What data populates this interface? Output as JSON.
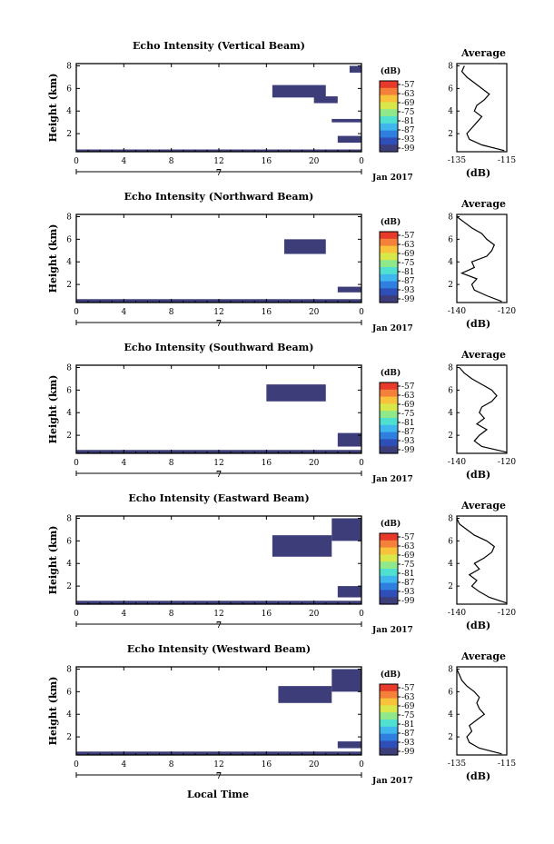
{
  "figure": {
    "bottom_xlabel": "Local Time",
    "date_label": "Jan 2017",
    "day_label": "7",
    "colorbar_unit": "(dB)",
    "avg_title": "Average",
    "avg_xlabel": "(dB)",
    "ylabel": "Height (km)"
  },
  "colors": {
    "echo": "#3d3d7a",
    "colorbar_stops": [
      "#3d3d7a",
      "#2f4fb8",
      "#2f7fe0",
      "#3fb6ee",
      "#4fe0d0",
      "#8fe88a",
      "#d8e84a",
      "#f8c23a",
      "#f5803a",
      "#e83a2a"
    ]
  },
  "chart_data": [
    {
      "type": "heatmap",
      "title": "Echo Intensity (Vertical Beam)",
      "xlabel": "",
      "ylabel": "Height (km)",
      "x_ticks": [
        "0",
        "4",
        "8",
        "12",
        "16",
        "20",
        "0"
      ],
      "y_ticks": [
        "2",
        "4",
        "6",
        "8"
      ],
      "xlim": [
        0,
        24
      ],
      "ylim": [
        0.4,
        8.2
      ],
      "colorbar": {
        "label": "(dB)",
        "ticks": [
          "-57",
          "-63",
          "-69",
          "-75",
          "-81",
          "-87",
          "-93",
          "-99"
        ]
      },
      "echo_regions": [
        {
          "x": [
            16.5,
            21.0
          ],
          "y": [
            5.2,
            6.3
          ]
        },
        {
          "x": [
            20.0,
            22.0
          ],
          "y": [
            4.7,
            5.3
          ]
        },
        {
          "x": [
            21.5,
            24.0
          ],
          "y": [
            3.0,
            3.3
          ]
        },
        {
          "x": [
            22.0,
            24.0
          ],
          "y": [
            1.2,
            1.8
          ]
        },
        {
          "x": [
            23.0,
            24.0
          ],
          "y": [
            7.4,
            8.0
          ]
        },
        {
          "x": [
            0.0,
            24.0
          ],
          "y": [
            0.4,
            0.6
          ]
        }
      ],
      "average_profile": {
        "title": "Average",
        "xlabel": "(dB)",
        "x_ticks": [
          "-135",
          "-115"
        ],
        "y_ticks": [
          "2",
          "4",
          "6",
          "8"
        ],
        "height": [
          0.5,
          1.0,
          1.5,
          2.0,
          2.5,
          3.0,
          3.5,
          4.0,
          4.5,
          5.0,
          5.5,
          6.0,
          6.5,
          7.0,
          7.5,
          8.0
        ],
        "value": [
          -116,
          -125,
          -130,
          -131,
          -129,
          -127,
          -125,
          -128,
          -127,
          -124,
          -122,
          -125,
          -128,
          -131,
          -133,
          -132
        ]
      }
    },
    {
      "type": "heatmap",
      "title": "Echo Intensity (Northward Beam)",
      "xlabel": "",
      "ylabel": "Height (km)",
      "x_ticks": [
        "0",
        "4",
        "8",
        "12",
        "16",
        "20",
        "0"
      ],
      "y_ticks": [
        "2",
        "4",
        "6",
        "8"
      ],
      "xlim": [
        0,
        24
      ],
      "ylim": [
        0.4,
        8.2
      ],
      "colorbar": {
        "label": "(dB)",
        "ticks": [
          "-57",
          "-63",
          "-69",
          "-75",
          "-81",
          "-87",
          "-93",
          "-99"
        ]
      },
      "echo_regions": [
        {
          "x": [
            17.5,
            21.0
          ],
          "y": [
            4.7,
            6.0
          ]
        },
        {
          "x": [
            22.0,
            24.0
          ],
          "y": [
            1.3,
            1.8
          ]
        },
        {
          "x": [
            0.0,
            24.0
          ],
          "y": [
            0.4,
            0.7
          ]
        }
      ],
      "average_profile": {
        "title": "Average",
        "xlabel": "(dB)",
        "x_ticks": [
          "-140",
          "-120"
        ],
        "y_ticks": [
          "2",
          "4",
          "6",
          "8"
        ],
        "height": [
          0.5,
          1.0,
          1.5,
          2.0,
          2.5,
          3.0,
          3.5,
          4.0,
          4.5,
          5.0,
          5.5,
          6.0,
          6.5,
          7.0,
          7.5,
          8.0
        ],
        "value": [
          -122,
          -128,
          -133,
          -134,
          -132,
          -138,
          -133,
          -134,
          -128,
          -126,
          -125,
          -128,
          -130,
          -134,
          -137,
          -140
        ]
      }
    },
    {
      "type": "heatmap",
      "title": "Echo Intensity (Southward Beam)",
      "xlabel": "",
      "ylabel": "Height (km)",
      "x_ticks": [
        "0",
        "4",
        "8",
        "12",
        "16",
        "20",
        "0"
      ],
      "y_ticks": [
        "2",
        "4",
        "6",
        "8"
      ],
      "xlim": [
        0,
        24
      ],
      "ylim": [
        0.4,
        8.2
      ],
      "colorbar": {
        "label": "(dB)",
        "ticks": [
          "-57",
          "-63",
          "-69",
          "-75",
          "-81",
          "-87",
          "-93",
          "-99"
        ]
      },
      "echo_regions": [
        {
          "x": [
            16.0,
            21.0
          ],
          "y": [
            5.0,
            6.5
          ]
        },
        {
          "x": [
            22.0,
            24.0
          ],
          "y": [
            1.0,
            2.2
          ]
        },
        {
          "x": [
            0.0,
            24.0
          ],
          "y": [
            0.4,
            0.7
          ]
        }
      ],
      "average_profile": {
        "title": "Average",
        "xlabel": "(dB)",
        "x_ticks": [
          "-140",
          "-120"
        ],
        "y_ticks": [
          "2",
          "4",
          "6",
          "8"
        ],
        "height": [
          0.5,
          1.0,
          1.5,
          2.0,
          2.5,
          3.0,
          3.5,
          4.0,
          4.5,
          5.0,
          5.5,
          6.0,
          6.5,
          7.0,
          7.5,
          8.0
        ],
        "value": [
          -119,
          -130,
          -133,
          -131,
          -128,
          -132,
          -129,
          -131,
          -130,
          -126,
          -124,
          -126,
          -130,
          -134,
          -137,
          -139
        ]
      }
    },
    {
      "type": "heatmap",
      "title": "Echo Intensity (Eastward Beam)",
      "xlabel": "",
      "ylabel": "Height (km)",
      "x_ticks": [
        "0",
        "4",
        "8",
        "12",
        "16",
        "20",
        "0"
      ],
      "y_ticks": [
        "2",
        "4",
        "6",
        "8"
      ],
      "xlim": [
        0,
        24
      ],
      "ylim": [
        0.4,
        8.2
      ],
      "colorbar": {
        "label": "(dB)",
        "ticks": [
          "-57",
          "-63",
          "-69",
          "-75",
          "-81",
          "-87",
          "-93",
          "-99"
        ]
      },
      "echo_regions": [
        {
          "x": [
            16.5,
            21.5
          ],
          "y": [
            4.6,
            6.5
          ]
        },
        {
          "x": [
            21.5,
            24.0
          ],
          "y": [
            6.0,
            8.0
          ]
        },
        {
          "x": [
            22.0,
            24.0
          ],
          "y": [
            1.0,
            2.0
          ]
        },
        {
          "x": [
            0.0,
            24.0
          ],
          "y": [
            0.4,
            0.7
          ]
        }
      ],
      "average_profile": {
        "title": "Average",
        "xlabel": "(dB)",
        "x_ticks": [
          "-140",
          "-120"
        ],
        "y_ticks": [
          "2",
          "4",
          "6",
          "8"
        ],
        "height": [
          0.5,
          1.0,
          1.5,
          2.0,
          2.5,
          3.0,
          3.5,
          4.0,
          4.5,
          5.0,
          5.5,
          6.0,
          6.5,
          7.0,
          7.5,
          8.0
        ],
        "value": [
          -118,
          -127,
          -131,
          -134,
          -132,
          -135,
          -131,
          -133,
          -129,
          -126,
          -125,
          -128,
          -133,
          -136,
          -139,
          -141
        ]
      }
    },
    {
      "type": "heatmap",
      "title": "Echo Intensity (Westward Beam)",
      "xlabel": "Local Time",
      "ylabel": "Height (km)",
      "x_ticks": [
        "0",
        "4",
        "8",
        "12",
        "16",
        "20",
        "0"
      ],
      "y_ticks": [
        "2",
        "4",
        "6",
        "8"
      ],
      "xlim": [
        0,
        24
      ],
      "ylim": [
        0.4,
        8.2
      ],
      "colorbar": {
        "label": "(dB)",
        "ticks": [
          "-57",
          "-63",
          "-69",
          "-75",
          "-81",
          "-87",
          "-93",
          "-99"
        ]
      },
      "echo_regions": [
        {
          "x": [
            17.0,
            21.5
          ],
          "y": [
            5.0,
            6.5
          ]
        },
        {
          "x": [
            21.5,
            24.0
          ],
          "y": [
            6.0,
            8.0
          ]
        },
        {
          "x": [
            22.0,
            24.0
          ],
          "y": [
            1.0,
            1.6
          ]
        },
        {
          "x": [
            0.0,
            24.0
          ],
          "y": [
            0.4,
            0.7
          ]
        }
      ],
      "average_profile": {
        "title": "Average",
        "xlabel": "(dB)",
        "x_ticks": [
          "-135",
          "-115"
        ],
        "y_ticks": [
          "2",
          "4",
          "6",
          "8"
        ],
        "height": [
          0.5,
          1.0,
          1.5,
          2.0,
          2.5,
          3.0,
          3.5,
          4.0,
          4.5,
          5.0,
          5.5,
          6.0,
          6.5,
          7.0,
          7.5,
          8.0
        ],
        "value": [
          -117,
          -126,
          -130,
          -131,
          -129,
          -130,
          -127,
          -124,
          -126,
          -127,
          -126,
          -128,
          -131,
          -133,
          -134,
          -135
        ]
      }
    }
  ]
}
